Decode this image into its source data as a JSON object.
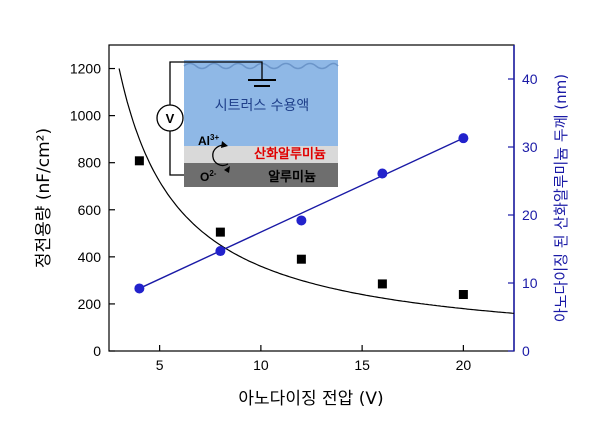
{
  "chart_data": {
    "type": "scatter",
    "x_label": "아노다이징 전압 (V)",
    "y_label_left": "정전용량 (nF/cm²)",
    "y_label_right": "아노다이징 된 산화알루미늄 두께  (nm)",
    "xlim": [
      2.5,
      22.5
    ],
    "ylim_left": [
      0,
      1300
    ],
    "ylim_right": [
      0,
      45
    ],
    "x_ticks": [
      "5",
      "10",
      "15",
      "20"
    ],
    "y_ticks_left": [
      "0",
      "200",
      "400",
      "600",
      "800",
      "1000",
      "1200"
    ],
    "y_ticks_right": [
      "0",
      "10",
      "20",
      "30",
      "40"
    ],
    "series": [
      {
        "axis": "left",
        "marker": "square",
        "color": "#000000",
        "x": [
          4,
          8,
          12,
          16,
          20
        ],
        "y": [
          808,
          505,
          390,
          285,
          240
        ]
      },
      {
        "axis": "right",
        "marker": "circle",
        "color": "#2222cc",
        "x": [
          4,
          8,
          12,
          16,
          20
        ],
        "y": [
          9.2,
          14.7,
          19.2,
          26.1,
          31.3
        ],
        "fit_line": {
          "x": [
            4,
            20
          ],
          "y": [
            9.2,
            31.3
          ],
          "color": "#1a1aa6"
        }
      }
    ],
    "fit_curve": {
      "axis": "left",
      "color": "#000000",
      "model": "a/x",
      "a": 3600,
      "x_range": [
        3.0,
        22.5
      ]
    },
    "grid": false
  },
  "inset": {
    "solution_label": "시트러스 수용액",
    "oxide_label": "산화알루미늄",
    "metal_label": "알루미늄",
    "al_ion": "Al",
    "al_ion_sup": "3+",
    "o_ion": "O",
    "o_ion_sup": "2-",
    "meter_label": "V",
    "colors": {
      "solution": "#8fb8e6",
      "oxide": "#d9d9d9",
      "metal": "#6e6e6e",
      "oxide_text": "#e00000"
    }
  }
}
